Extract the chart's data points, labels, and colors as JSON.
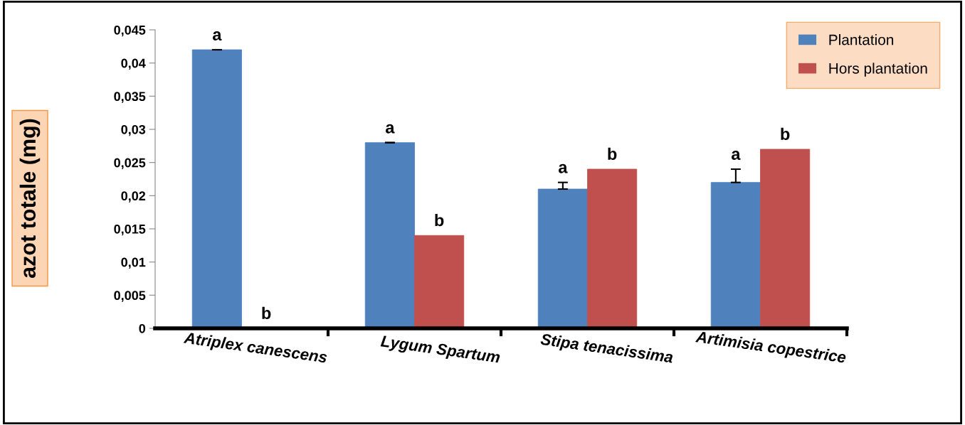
{
  "chart_data": {
    "type": "bar",
    "ylabel": "azot totale (mg)",
    "categories": [
      "Atriplex canescens",
      "Lygum Spartum",
      "Stipa tenacissima",
      "Artimisia copestrice"
    ],
    "series": [
      {
        "name": "Plantation",
        "color": "#4f81bd",
        "values": [
          0.042,
          0.028,
          0.021,
          0.022
        ],
        "errors": [
          [
            0.042,
            0.042
          ],
          [
            0.028,
            0.028
          ],
          [
            0.021,
            0.022
          ],
          [
            0.022,
            0.024
          ]
        ],
        "value_labels": [
          "a",
          "a",
          "a",
          "a"
        ]
      },
      {
        "name": "Hors plantation",
        "color": "#c0504d",
        "values": [
          0,
          0.014,
          0.024,
          0.027
        ],
        "value_labels": [
          "b",
          "b",
          "b",
          "b"
        ]
      }
    ],
    "ylim": [
      0,
      0.045
    ],
    "yticks": [
      {
        "value": 0,
        "label": "0"
      },
      {
        "value": 0.005,
        "label": "0,005"
      },
      {
        "value": 0.01,
        "label": "0,01"
      },
      {
        "value": 0.015,
        "label": "0,015"
      },
      {
        "value": 0.02,
        "label": "0,02"
      },
      {
        "value": 0.025,
        "label": "0,025"
      },
      {
        "value": 0.03,
        "label": "0,03"
      },
      {
        "value": 0.035,
        "label": "0,035"
      },
      {
        "value": 0.04,
        "label": "0,04"
      },
      {
        "value": 0.045,
        "label": "0,045"
      }
    ],
    "grid": false,
    "legend": "top right"
  }
}
